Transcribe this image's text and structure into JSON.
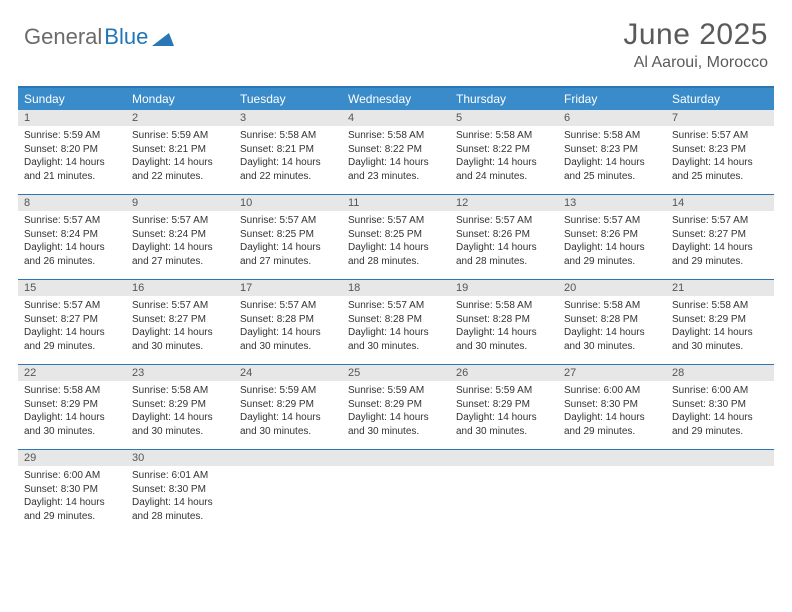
{
  "brand": {
    "part1": "General",
    "part2": "Blue"
  },
  "title": "June 2025",
  "location": "Al Aaroui, Morocco",
  "colors": {
    "header_bg": "#3a8bc9",
    "border": "#2b77b5",
    "daynum_bg": "#e7e7e7",
    "text": "#333333",
    "title_text": "#5a5a5a",
    "brand_gray": "#6b6b6b",
    "brand_blue": "#2176b8",
    "background": "#ffffff"
  },
  "typography": {
    "font_family": "Arial",
    "title_size_pt": 22,
    "body_size_pt": 7.5
  },
  "calendar": {
    "type": "table",
    "columns": [
      "Sunday",
      "Monday",
      "Tuesday",
      "Wednesday",
      "Thursday",
      "Friday",
      "Saturday"
    ],
    "weeks": [
      [
        {
          "n": "1",
          "sr": "5:59 AM",
          "ss": "8:20 PM",
          "dl": "14 hours and 21 minutes."
        },
        {
          "n": "2",
          "sr": "5:59 AM",
          "ss": "8:21 PM",
          "dl": "14 hours and 22 minutes."
        },
        {
          "n": "3",
          "sr": "5:58 AM",
          "ss": "8:21 PM",
          "dl": "14 hours and 22 minutes."
        },
        {
          "n": "4",
          "sr": "5:58 AM",
          "ss": "8:22 PM",
          "dl": "14 hours and 23 minutes."
        },
        {
          "n": "5",
          "sr": "5:58 AM",
          "ss": "8:22 PM",
          "dl": "14 hours and 24 minutes."
        },
        {
          "n": "6",
          "sr": "5:58 AM",
          "ss": "8:23 PM",
          "dl": "14 hours and 25 minutes."
        },
        {
          "n": "7",
          "sr": "5:57 AM",
          "ss": "8:23 PM",
          "dl": "14 hours and 25 minutes."
        }
      ],
      [
        {
          "n": "8",
          "sr": "5:57 AM",
          "ss": "8:24 PM",
          "dl": "14 hours and 26 minutes."
        },
        {
          "n": "9",
          "sr": "5:57 AM",
          "ss": "8:24 PM",
          "dl": "14 hours and 27 minutes."
        },
        {
          "n": "10",
          "sr": "5:57 AM",
          "ss": "8:25 PM",
          "dl": "14 hours and 27 minutes."
        },
        {
          "n": "11",
          "sr": "5:57 AM",
          "ss": "8:25 PM",
          "dl": "14 hours and 28 minutes."
        },
        {
          "n": "12",
          "sr": "5:57 AM",
          "ss": "8:26 PM",
          "dl": "14 hours and 28 minutes."
        },
        {
          "n": "13",
          "sr": "5:57 AM",
          "ss": "8:26 PM",
          "dl": "14 hours and 29 minutes."
        },
        {
          "n": "14",
          "sr": "5:57 AM",
          "ss": "8:27 PM",
          "dl": "14 hours and 29 minutes."
        }
      ],
      [
        {
          "n": "15",
          "sr": "5:57 AM",
          "ss": "8:27 PM",
          "dl": "14 hours and 29 minutes."
        },
        {
          "n": "16",
          "sr": "5:57 AM",
          "ss": "8:27 PM",
          "dl": "14 hours and 30 minutes."
        },
        {
          "n": "17",
          "sr": "5:57 AM",
          "ss": "8:28 PM",
          "dl": "14 hours and 30 minutes."
        },
        {
          "n": "18",
          "sr": "5:57 AM",
          "ss": "8:28 PM",
          "dl": "14 hours and 30 minutes."
        },
        {
          "n": "19",
          "sr": "5:58 AM",
          "ss": "8:28 PM",
          "dl": "14 hours and 30 minutes."
        },
        {
          "n": "20",
          "sr": "5:58 AM",
          "ss": "8:28 PM",
          "dl": "14 hours and 30 minutes."
        },
        {
          "n": "21",
          "sr": "5:58 AM",
          "ss": "8:29 PM",
          "dl": "14 hours and 30 minutes."
        }
      ],
      [
        {
          "n": "22",
          "sr": "5:58 AM",
          "ss": "8:29 PM",
          "dl": "14 hours and 30 minutes."
        },
        {
          "n": "23",
          "sr": "5:58 AM",
          "ss": "8:29 PM",
          "dl": "14 hours and 30 minutes."
        },
        {
          "n": "24",
          "sr": "5:59 AM",
          "ss": "8:29 PM",
          "dl": "14 hours and 30 minutes."
        },
        {
          "n": "25",
          "sr": "5:59 AM",
          "ss": "8:29 PM",
          "dl": "14 hours and 30 minutes."
        },
        {
          "n": "26",
          "sr": "5:59 AM",
          "ss": "8:29 PM",
          "dl": "14 hours and 30 minutes."
        },
        {
          "n": "27",
          "sr": "6:00 AM",
          "ss": "8:30 PM",
          "dl": "14 hours and 29 minutes."
        },
        {
          "n": "28",
          "sr": "6:00 AM",
          "ss": "8:30 PM",
          "dl": "14 hours and 29 minutes."
        }
      ],
      [
        {
          "n": "29",
          "sr": "6:00 AM",
          "ss": "8:30 PM",
          "dl": "14 hours and 29 minutes."
        },
        {
          "n": "30",
          "sr": "6:01 AM",
          "ss": "8:30 PM",
          "dl": "14 hours and 28 minutes."
        },
        null,
        null,
        null,
        null,
        null
      ]
    ],
    "labels": {
      "sunrise": "Sunrise:",
      "sunset": "Sunset:",
      "daylight": "Daylight:"
    }
  }
}
